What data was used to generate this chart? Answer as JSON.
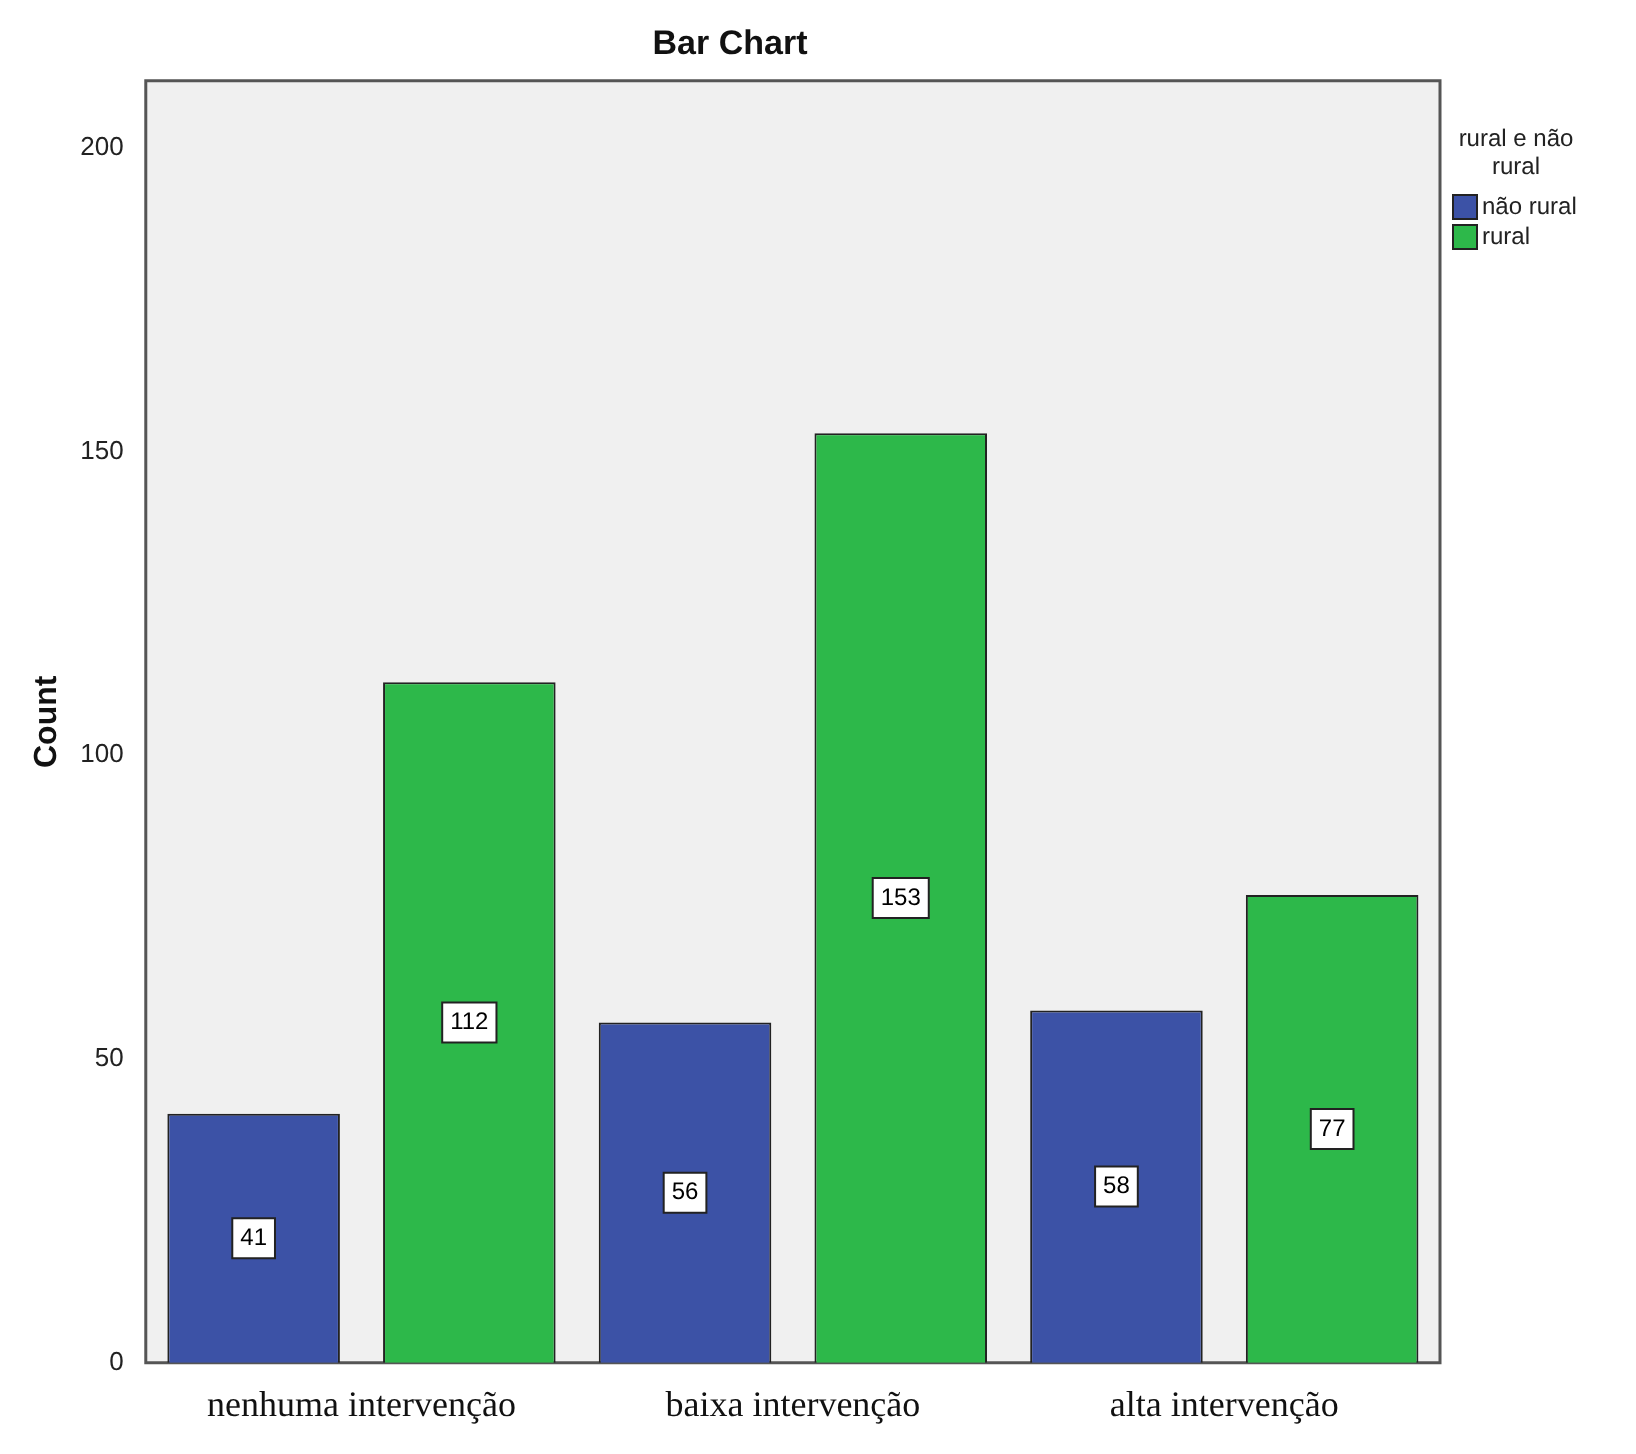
{
  "chart_data": {
    "type": "bar",
    "title": "Bar Chart",
    "ylabel": "Count",
    "legend_title": "rural e não rural",
    "categories": [
      "nenhuma intervenção",
      "baixa intervenção",
      "alta intervenção"
    ],
    "series": [
      {
        "name": "não rural",
        "color": "#3c52a6",
        "values": [
          41,
          56,
          58
        ]
      },
      {
        "name": "rural",
        "color": "#2db84a",
        "values": [
          112,
          153,
          77
        ]
      }
    ],
    "ylim": [
      0,
      211
    ],
    "yticks": [
      0,
      50,
      100,
      150,
      200
    ],
    "grid": false,
    "legend": "top right",
    "data_labels": true
  }
}
